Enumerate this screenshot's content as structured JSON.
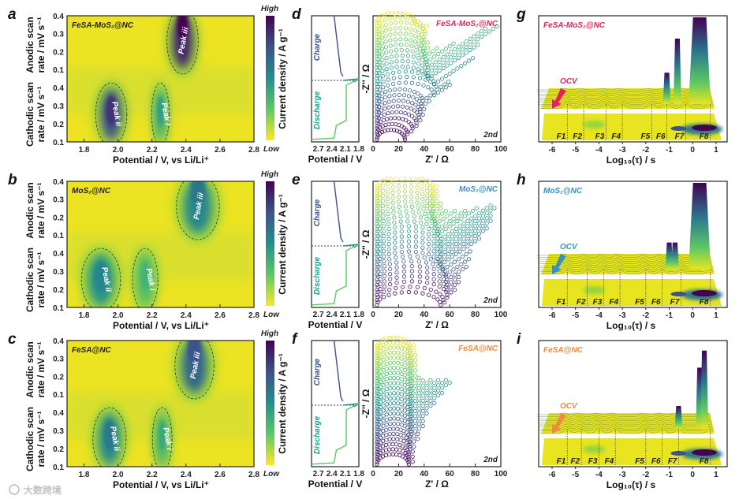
{
  "figure": {
    "watermark": "大数跨境",
    "colors": {
      "red": "#e0245e",
      "blue": "#3a8fc4",
      "orange": "#f08a3c"
    }
  },
  "chart_data": [
    {
      "panel": "a",
      "type": "heatmap",
      "sample": "FeSA-MoS₂@NC",
      "sample_color": "#222222",
      "xlabel": "Potential / V, vs Li/Li⁺",
      "xlim": [
        1.7,
        2.8
      ],
      "xticks": [
        "1.8",
        "2.0",
        "2.2",
        "2.4",
        "2.6",
        "2.8"
      ],
      "ylabel_top": [
        "Anodic scan",
        "rate / mV s⁻¹"
      ],
      "ylabel_bottom": [
        "Cathodic scan",
        "rate / mV s⁻¹"
      ],
      "yticks": [
        "0.4",
        "0.3",
        "0.2",
        "0.1"
      ],
      "colorbar": {
        "label": "Current density / A g⁻¹",
        "high": "High",
        "low": "Low"
      },
      "peaks": [
        {
          "label": "Peak iii",
          "potential": 2.38,
          "region": "anodic",
          "intensity": 1.0,
          "width": 0.16
        },
        {
          "label": "Peak ii",
          "potential": 1.96,
          "region": "cathodic",
          "intensity": 0.85,
          "width": 0.16
        },
        {
          "label": "Peak i",
          "potential": 2.25,
          "region": "cathodic",
          "intensity": 0.45,
          "width": 0.09
        }
      ]
    },
    {
      "panel": "b",
      "type": "heatmap",
      "sample": "MoS₂@NC",
      "sample_color": "#222222",
      "xlabel": "Potential / V, vs Li/Li⁺",
      "xlim": [
        1.7,
        2.8
      ],
      "xticks": [
        "1.8",
        "2.0",
        "2.2",
        "2.4",
        "2.6",
        "2.8"
      ],
      "ylabel_top": [
        "Anodic scan",
        "rate / mV s⁻¹"
      ],
      "ylabel_bottom": [
        "Cathodic scan",
        "rate / mV s⁻¹"
      ],
      "yticks": [
        "0.4",
        "0.3",
        "0.2",
        "0.1"
      ],
      "colorbar": {
        "label": "Current density / A g⁻¹",
        "high": "High",
        "low": "Low"
      },
      "peaks": [
        {
          "label": "Peak iii",
          "potential": 2.47,
          "region": "anodic",
          "intensity": 0.6,
          "width": 0.22
        },
        {
          "label": "Peak ii",
          "potential": 1.9,
          "region": "cathodic",
          "intensity": 0.55,
          "width": 0.2
        },
        {
          "label": "Peak i",
          "potential": 2.16,
          "region": "cathodic",
          "intensity": 0.35,
          "width": 0.13
        }
      ]
    },
    {
      "panel": "c",
      "type": "heatmap",
      "sample": "FeSA@NC",
      "sample_color": "#222222",
      "xlabel": "Potential / V, vs Li/Li⁺",
      "xlim": [
        1.7,
        2.8
      ],
      "xticks": [
        "1.8",
        "2.0",
        "2.2",
        "2.4",
        "2.6",
        "2.8"
      ],
      "ylabel_top": [
        "Anodic scan",
        "rate / mV s⁻¹"
      ],
      "ylabel_bottom": [
        "Cathodic scan",
        "rate / mV s⁻¹"
      ],
      "yticks": [
        "0.4",
        "0.3",
        "0.2",
        "0.1"
      ],
      "colorbar": {
        "label": "Current density / A g⁻¹",
        "high": "High",
        "low": "Low"
      },
      "peaks": [
        {
          "label": "Peak iii",
          "potential": 2.45,
          "region": "anodic",
          "intensity": 0.75,
          "width": 0.2
        },
        {
          "label": "Peak ii",
          "potential": 1.95,
          "region": "cathodic",
          "intensity": 0.6,
          "width": 0.17
        },
        {
          "label": "Peak i",
          "potential": 2.26,
          "region": "cathodic",
          "intensity": 0.4,
          "width": 0.1
        }
      ]
    },
    {
      "panel": "d",
      "type": "scatter",
      "sample": "FeSA-MoS₂@NC",
      "sample_color": "#e0245e",
      "gcd": {
        "xlabel": "Potential / V",
        "xlim": [
          2.85,
          1.8
        ],
        "xticks": [
          "2.7",
          "2.4",
          "2.1",
          "1.8"
        ],
        "charge_label": "Charge",
        "discharge_label": "Discharge",
        "charge": [
          [
            2.35,
            0
          ],
          [
            2.3,
            0.15
          ],
          [
            2.25,
            0.3
          ],
          [
            2.2,
            0.45
          ],
          [
            2.15,
            0.48
          ]
        ],
        "discharge": [
          [
            1.8,
            0.5
          ],
          [
            2.08,
            0.55
          ],
          [
            2.08,
            0.83
          ],
          [
            2.3,
            0.87
          ],
          [
            2.35,
            0.97
          ],
          [
            2.85,
            0.98
          ]
        ]
      },
      "eis": {
        "xlabel": "Z' / Ω",
        "ylabel": "-Z'' / Ω",
        "xlim": [
          0,
          100
        ],
        "xticks": [
          "0",
          "20",
          "40",
          "60",
          "80",
          "100"
        ],
        "cycle": "2nd",
        "R": [
          22,
          24,
          28,
          31,
          33,
          34,
          35,
          36,
          45,
          47,
          45,
          40,
          40,
          40,
          39,
          38,
          37,
          37,
          37,
          38,
          36,
          30
        ],
        "tail": [
          0,
          2,
          2,
          3,
          3,
          4,
          5,
          6,
          12,
          10,
          30,
          40,
          55,
          45,
          20,
          8,
          4,
          2,
          0,
          0,
          2,
          0
        ]
      }
    },
    {
      "panel": "e",
      "type": "scatter",
      "sample": "MoS₂@NC",
      "sample_color": "#3a8fc4",
      "gcd": {
        "xlabel": "Potential / V",
        "xlim": [
          2.85,
          1.8
        ],
        "xticks": [
          "2.7",
          "2.4",
          "2.1",
          "1.8"
        ],
        "charge_label": "Charge",
        "discharge_label": "Discharge",
        "charge": [
          [
            2.35,
            0
          ],
          [
            2.3,
            0.15
          ],
          [
            2.25,
            0.3
          ],
          [
            2.2,
            0.45
          ],
          [
            2.15,
            0.48
          ]
        ],
        "discharge": [
          [
            1.8,
            0.5
          ],
          [
            2.08,
            0.55
          ],
          [
            2.08,
            0.83
          ],
          [
            2.3,
            0.87
          ],
          [
            2.35,
            0.97
          ],
          [
            2.85,
            0.98
          ]
        ]
      },
      "eis": {
        "xlabel": "Z' / Ω",
        "ylabel": "-Z'' / Ω",
        "xlim": [
          0,
          100
        ],
        "xticks": [
          "0",
          "20",
          "40",
          "60",
          "80",
          "100"
        ],
        "cycle": "2nd",
        "R": [
          50,
          52,
          55,
          55,
          55,
          55,
          54,
          52,
          50,
          50,
          50,
          50,
          50,
          50,
          48,
          48,
          46,
          45,
          44,
          44,
          44,
          44,
          44,
          44
        ],
        "tail": [
          2,
          3,
          5,
          8,
          10,
          14,
          18,
          22,
          30,
          35,
          38,
          40,
          42,
          40,
          30,
          20,
          14,
          10,
          6,
          5,
          4,
          3,
          2,
          2
        ]
      }
    },
    {
      "panel": "f",
      "type": "scatter",
      "sample": "FeSA@NC",
      "sample_color": "#f08a3c",
      "gcd": {
        "xlabel": "Potential / V",
        "xlim": [
          2.85,
          1.8
        ],
        "xticks": [
          "2.7",
          "2.4",
          "2.1",
          "1.8"
        ],
        "charge_label": "Charge",
        "discharge_label": "Discharge",
        "charge": [
          [
            2.35,
            0
          ],
          [
            2.3,
            0.15
          ],
          [
            2.25,
            0.3
          ],
          [
            2.2,
            0.45
          ],
          [
            2.15,
            0.48
          ]
        ],
        "discharge": [
          [
            1.8,
            0.5
          ],
          [
            2.08,
            0.55
          ],
          [
            2.08,
            0.83
          ],
          [
            2.3,
            0.87
          ],
          [
            2.35,
            0.97
          ],
          [
            2.85,
            0.98
          ]
        ]
      },
      "eis": {
        "xlabel": "Z' / Ω",
        "ylabel": "-Z'' / Ω",
        "xlim": [
          0,
          100
        ],
        "xticks": [
          "0",
          "20",
          "40",
          "60",
          "80",
          "100"
        ],
        "cycle": "2nd",
        "R": [
          25,
          25,
          25,
          26,
          26,
          26,
          27,
          27,
          27,
          27,
          27,
          27,
          27,
          27,
          27,
          27,
          27,
          27,
          27,
          27,
          27,
          27,
          26,
          26
        ],
        "tail": [
          2,
          3,
          3,
          4,
          5,
          6,
          8,
          10,
          12,
          18,
          25,
          30,
          28,
          22,
          15,
          10,
          6,
          4,
          3,
          2,
          2,
          2,
          2,
          2
        ]
      }
    },
    {
      "panel": "g",
      "type": "area",
      "sample": "FeSA-MoS₂@NC",
      "sample_color": "#e0245e",
      "xlabel": "Log₁₀(τ) / s",
      "xlim": [
        -6.6,
        1.5
      ],
      "xticks": [
        "-6",
        "-5",
        "-4",
        "-3",
        "-2",
        "-1",
        "0",
        "1"
      ],
      "ocv_label": "OCV",
      "features": [
        {
          "label": "F1",
          "log_tau": -5.35
        },
        {
          "label": "F2",
          "log_tau": -4.65
        },
        {
          "label": "F3",
          "log_tau": -3.7
        },
        {
          "label": "F4",
          "log_tau": -3.0
        },
        {
          "label": "F5",
          "log_tau": -1.75
        },
        {
          "label": "F6",
          "log_tau": -1.1
        },
        {
          "label": "F7",
          "log_tau": -0.3
        },
        {
          "label": "F8",
          "log_tau": 0.75
        }
      ],
      "tall_peaks": [
        {
          "log_tau": -1.1,
          "height": 0.35
        },
        {
          "log_tau": -0.65,
          "height": 0.75
        },
        {
          "log_tau": 0.3,
          "height": 1.0
        }
      ]
    },
    {
      "panel": "h",
      "type": "area",
      "sample": "MoS₂@NC",
      "sample_color": "#3a8fc4",
      "xlabel": "Log₁₀(τ) / s",
      "xlim": [
        -6.6,
        1.5
      ],
      "xticks": [
        "-6",
        "-5",
        "-4",
        "-3",
        "-2",
        "-1",
        "0",
        "1"
      ],
      "ocv_label": "OCV",
      "features": [
        {
          "label": "F1",
          "log_tau": -5.35
        },
        {
          "label": "F2",
          "log_tau": -4.5
        },
        {
          "label": "F3",
          "log_tau": -3.8
        },
        {
          "label": "F4",
          "log_tau": -3.1
        },
        {
          "label": "F5",
          "log_tau": -2.0
        },
        {
          "label": "F6",
          "log_tau": -1.3
        },
        {
          "label": "F7",
          "log_tau": -0.5
        },
        {
          "label": "F8",
          "log_tau": 0.75
        }
      ],
      "tall_peaks": [
        {
          "log_tau": -1.0,
          "height": 0.3
        },
        {
          "log_tau": -0.75,
          "height": 0.3
        },
        {
          "log_tau": 0.3,
          "height": 1.0
        }
      ]
    },
    {
      "panel": "i",
      "type": "area",
      "sample": "FeSA@NC",
      "sample_color": "#f08a3c",
      "xlabel": "Log₁₀(τ) / s",
      "xlim": [
        -6.6,
        1.5
      ],
      "xticks": [
        "-6",
        "-5",
        "-4",
        "-3",
        "-2",
        "-1",
        "0",
        "1"
      ],
      "ocv_label": "OCV",
      "features": [
        {
          "label": "F1",
          "log_tau": -5.35
        },
        {
          "label": "F2",
          "log_tau": -4.75
        },
        {
          "label": "F3",
          "log_tau": -4.0
        },
        {
          "label": "F4",
          "log_tau": -3.3
        },
        {
          "label": "F5",
          "log_tau": -2.0
        },
        {
          "label": "F6",
          "log_tau": -1.3
        },
        {
          "label": "F7",
          "log_tau": -0.6
        },
        {
          "label": "F8",
          "log_tau": 0.75
        }
      ],
      "tall_peaks": [
        {
          "log_tau": -0.6,
          "height": 0.25
        },
        {
          "log_tau": 0.3,
          "height": 0.7
        },
        {
          "log_tau": 0.5,
          "height": 0.9
        }
      ]
    }
  ]
}
